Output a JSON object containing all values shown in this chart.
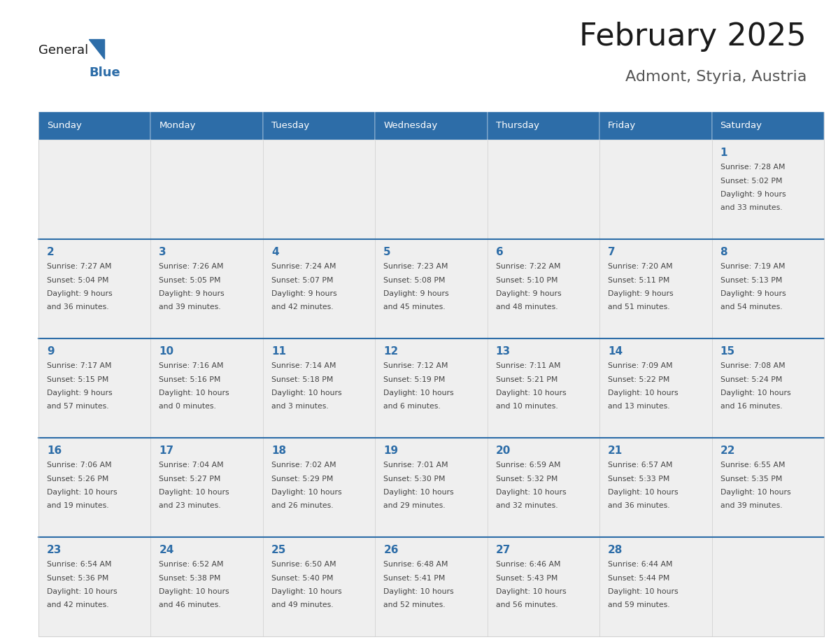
{
  "title": "February 2025",
  "subtitle": "Admont, Styria, Austria",
  "header_bg": "#2D6DA8",
  "header_text_color": "#FFFFFF",
  "day_names": [
    "Sunday",
    "Monday",
    "Tuesday",
    "Wednesday",
    "Thursday",
    "Friday",
    "Saturday"
  ],
  "row_bg": "#EFEFEF",
  "cell_border_color": "#CCCCCC",
  "week_sep_color": "#2D6DA8",
  "day_num_color": "#2D6DA8",
  "info_text_color": "#444444",
  "title_color": "#1a1a1a",
  "subtitle_color": "#555555",
  "logo_general_color": "#1a1a1a",
  "logo_blue_color": "#2D6DA8",
  "weeks": [
    [
      {
        "day": null,
        "info": ""
      },
      {
        "day": null,
        "info": ""
      },
      {
        "day": null,
        "info": ""
      },
      {
        "day": null,
        "info": ""
      },
      {
        "day": null,
        "info": ""
      },
      {
        "day": null,
        "info": ""
      },
      {
        "day": 1,
        "info": "Sunrise: 7:28 AM\nSunset: 5:02 PM\nDaylight: 9 hours\nand 33 minutes."
      }
    ],
    [
      {
        "day": 2,
        "info": "Sunrise: 7:27 AM\nSunset: 5:04 PM\nDaylight: 9 hours\nand 36 minutes."
      },
      {
        "day": 3,
        "info": "Sunrise: 7:26 AM\nSunset: 5:05 PM\nDaylight: 9 hours\nand 39 minutes."
      },
      {
        "day": 4,
        "info": "Sunrise: 7:24 AM\nSunset: 5:07 PM\nDaylight: 9 hours\nand 42 minutes."
      },
      {
        "day": 5,
        "info": "Sunrise: 7:23 AM\nSunset: 5:08 PM\nDaylight: 9 hours\nand 45 minutes."
      },
      {
        "day": 6,
        "info": "Sunrise: 7:22 AM\nSunset: 5:10 PM\nDaylight: 9 hours\nand 48 minutes."
      },
      {
        "day": 7,
        "info": "Sunrise: 7:20 AM\nSunset: 5:11 PM\nDaylight: 9 hours\nand 51 minutes."
      },
      {
        "day": 8,
        "info": "Sunrise: 7:19 AM\nSunset: 5:13 PM\nDaylight: 9 hours\nand 54 minutes."
      }
    ],
    [
      {
        "day": 9,
        "info": "Sunrise: 7:17 AM\nSunset: 5:15 PM\nDaylight: 9 hours\nand 57 minutes."
      },
      {
        "day": 10,
        "info": "Sunrise: 7:16 AM\nSunset: 5:16 PM\nDaylight: 10 hours\nand 0 minutes."
      },
      {
        "day": 11,
        "info": "Sunrise: 7:14 AM\nSunset: 5:18 PM\nDaylight: 10 hours\nand 3 minutes."
      },
      {
        "day": 12,
        "info": "Sunrise: 7:12 AM\nSunset: 5:19 PM\nDaylight: 10 hours\nand 6 minutes."
      },
      {
        "day": 13,
        "info": "Sunrise: 7:11 AM\nSunset: 5:21 PM\nDaylight: 10 hours\nand 10 minutes."
      },
      {
        "day": 14,
        "info": "Sunrise: 7:09 AM\nSunset: 5:22 PM\nDaylight: 10 hours\nand 13 minutes."
      },
      {
        "day": 15,
        "info": "Sunrise: 7:08 AM\nSunset: 5:24 PM\nDaylight: 10 hours\nand 16 minutes."
      }
    ],
    [
      {
        "day": 16,
        "info": "Sunrise: 7:06 AM\nSunset: 5:26 PM\nDaylight: 10 hours\nand 19 minutes."
      },
      {
        "day": 17,
        "info": "Sunrise: 7:04 AM\nSunset: 5:27 PM\nDaylight: 10 hours\nand 23 minutes."
      },
      {
        "day": 18,
        "info": "Sunrise: 7:02 AM\nSunset: 5:29 PM\nDaylight: 10 hours\nand 26 minutes."
      },
      {
        "day": 19,
        "info": "Sunrise: 7:01 AM\nSunset: 5:30 PM\nDaylight: 10 hours\nand 29 minutes."
      },
      {
        "day": 20,
        "info": "Sunrise: 6:59 AM\nSunset: 5:32 PM\nDaylight: 10 hours\nand 32 minutes."
      },
      {
        "day": 21,
        "info": "Sunrise: 6:57 AM\nSunset: 5:33 PM\nDaylight: 10 hours\nand 36 minutes."
      },
      {
        "day": 22,
        "info": "Sunrise: 6:55 AM\nSunset: 5:35 PM\nDaylight: 10 hours\nand 39 minutes."
      }
    ],
    [
      {
        "day": 23,
        "info": "Sunrise: 6:54 AM\nSunset: 5:36 PM\nDaylight: 10 hours\nand 42 minutes."
      },
      {
        "day": 24,
        "info": "Sunrise: 6:52 AM\nSunset: 5:38 PM\nDaylight: 10 hours\nand 46 minutes."
      },
      {
        "day": 25,
        "info": "Sunrise: 6:50 AM\nSunset: 5:40 PM\nDaylight: 10 hours\nand 49 minutes."
      },
      {
        "day": 26,
        "info": "Sunrise: 6:48 AM\nSunset: 5:41 PM\nDaylight: 10 hours\nand 52 minutes."
      },
      {
        "day": 27,
        "info": "Sunrise: 6:46 AM\nSunset: 5:43 PM\nDaylight: 10 hours\nand 56 minutes."
      },
      {
        "day": 28,
        "info": "Sunrise: 6:44 AM\nSunset: 5:44 PM\nDaylight: 10 hours\nand 59 minutes."
      },
      {
        "day": null,
        "info": ""
      }
    ]
  ]
}
